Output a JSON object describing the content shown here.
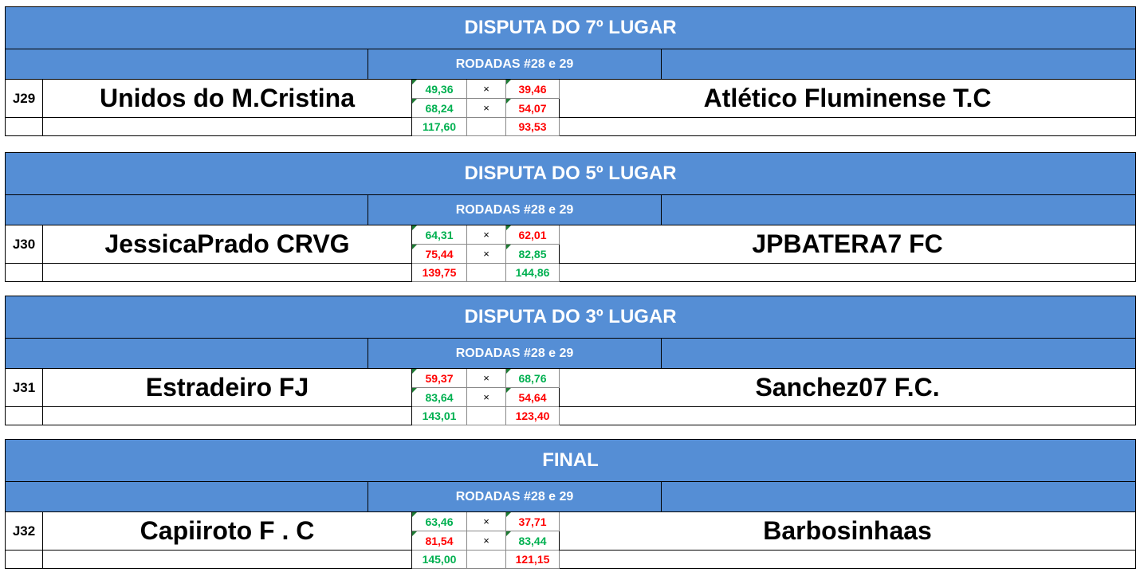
{
  "colors": {
    "header_bg": "#558ED5",
    "win": "#00B050",
    "lose": "#FF0000"
  },
  "blocks": [
    {
      "title": "DISPUTA DO 7º LUGAR",
      "subtitle": "RODADAS #28 e 29",
      "code": "J29",
      "home": "Unidos do M.Cristina",
      "away": "Atlético Fluminense T.C",
      "rows": [
        {
          "h": "49,36",
          "hc": "win",
          "a": "39,46",
          "ac": "lose",
          "sep": "×"
        },
        {
          "h": "68,24",
          "hc": "win",
          "a": "54,07",
          "ac": "lose",
          "sep": "×"
        },
        {
          "h": "117,60",
          "hc": "win",
          "a": "93,53",
          "ac": "lose",
          "sep": ""
        }
      ]
    },
    {
      "title": "DISPUTA DO 5º LUGAR",
      "subtitle": "RODADAS #28 e 29",
      "code": "J30",
      "home": "JessicaPrado CRVG",
      "away": "JPBATERA7 FC",
      "rows": [
        {
          "h": "64,31",
          "hc": "win",
          "a": "62,01",
          "ac": "lose",
          "sep": "×"
        },
        {
          "h": "75,44",
          "hc": "lose",
          "a": "82,85",
          "ac": "win",
          "sep": "×"
        },
        {
          "h": "139,75",
          "hc": "lose",
          "a": "144,86",
          "ac": "win",
          "sep": ""
        }
      ]
    },
    {
      "title": "DISPUTA DO 3º LUGAR",
      "subtitle": "RODADAS #28 e 29",
      "code": "J31",
      "home": "Estradeiro FJ",
      "away": "Sanchez07 F.C.",
      "rows": [
        {
          "h": "59,37",
          "hc": "lose",
          "a": "68,76",
          "ac": "win",
          "sep": "×"
        },
        {
          "h": "83,64",
          "hc": "win",
          "a": "54,64",
          "ac": "lose",
          "sep": "×"
        },
        {
          "h": "143,01",
          "hc": "win",
          "a": "123,40",
          "ac": "lose",
          "sep": ""
        }
      ]
    },
    {
      "title": "FINAL",
      "subtitle": "RODADAS #28 e 29",
      "code": "J32",
      "home": "Capiiroto F . C",
      "away": "Barbosinhaas",
      "rows": [
        {
          "h": "63,46",
          "hc": "win",
          "a": "37,71",
          "ac": "lose",
          "sep": "×"
        },
        {
          "h": "81,54",
          "hc": "lose",
          "a": "83,44",
          "ac": "win",
          "sep": "×"
        },
        {
          "h": "145,00",
          "hc": "win",
          "a": "121,15",
          "ac": "lose",
          "sep": ""
        }
      ]
    }
  ]
}
